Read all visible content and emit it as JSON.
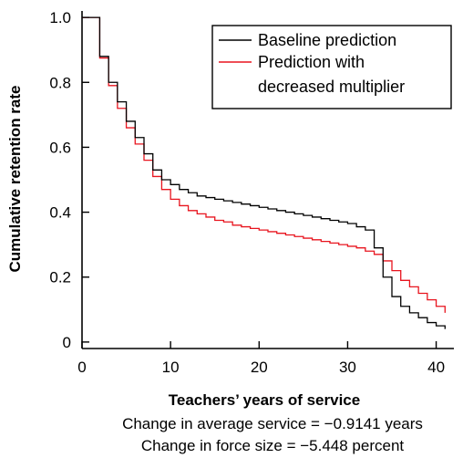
{
  "chart_data": {
    "type": "line",
    "step": true,
    "xlabel": "Teachers’ years of service",
    "ylabel": "Cumulative retention rate",
    "xlim": [
      0,
      42
    ],
    "ylim": [
      -0.02,
      1.02
    ],
    "xticks": [
      0,
      10,
      20,
      30,
      40
    ],
    "xtick_labels": [
      "0",
      "10",
      "20",
      "30",
      "40"
    ],
    "yticks": [
      0,
      0.2,
      0.4,
      0.6,
      0.8,
      1.0
    ],
    "ytick_labels": [
      "0",
      "0.2",
      "0.4",
      "0.6",
      "0.8",
      "1.0"
    ],
    "grid": false,
    "legend_position": "top-right",
    "series": [
      {
        "name": "Baseline prediction",
        "color": "#000000",
        "x": [
          0,
          1,
          2,
          3,
          4,
          5,
          6,
          7,
          8,
          9,
          10,
          11,
          12,
          13,
          14,
          15,
          16,
          17,
          18,
          19,
          20,
          21,
          22,
          23,
          24,
          25,
          26,
          27,
          28,
          29,
          30,
          31,
          32,
          33,
          34,
          35,
          36,
          37,
          38,
          39,
          40,
          41
        ],
        "y": [
          1.0,
          1.0,
          0.88,
          0.8,
          0.74,
          0.68,
          0.63,
          0.58,
          0.53,
          0.5,
          0.485,
          0.47,
          0.46,
          0.45,
          0.445,
          0.44,
          0.435,
          0.43,
          0.425,
          0.42,
          0.415,
          0.41,
          0.405,
          0.4,
          0.395,
          0.39,
          0.385,
          0.38,
          0.375,
          0.37,
          0.365,
          0.355,
          0.345,
          0.29,
          0.2,
          0.14,
          0.11,
          0.09,
          0.075,
          0.06,
          0.05,
          0.04
        ]
      },
      {
        "name": "Prediction with decreased multiplier",
        "color": "#e8141e",
        "x": [
          0,
          1,
          2,
          3,
          4,
          5,
          6,
          7,
          8,
          9,
          10,
          11,
          12,
          13,
          14,
          15,
          16,
          17,
          18,
          19,
          20,
          21,
          22,
          23,
          24,
          25,
          26,
          27,
          28,
          29,
          30,
          31,
          32,
          33,
          34,
          35,
          36,
          37,
          38,
          39,
          40,
          41
        ],
        "y": [
          1.0,
          1.0,
          0.875,
          0.79,
          0.72,
          0.66,
          0.61,
          0.56,
          0.51,
          0.47,
          0.44,
          0.42,
          0.405,
          0.395,
          0.385,
          0.375,
          0.37,
          0.36,
          0.355,
          0.35,
          0.345,
          0.34,
          0.335,
          0.33,
          0.325,
          0.32,
          0.315,
          0.31,
          0.305,
          0.3,
          0.295,
          0.29,
          0.28,
          0.27,
          0.25,
          0.22,
          0.19,
          0.17,
          0.15,
          0.13,
          0.11,
          0.09
        ]
      }
    ],
    "annotations": [
      "Change in average service = −0.9141 years",
      "Change in force size = −5.448 percent"
    ]
  }
}
